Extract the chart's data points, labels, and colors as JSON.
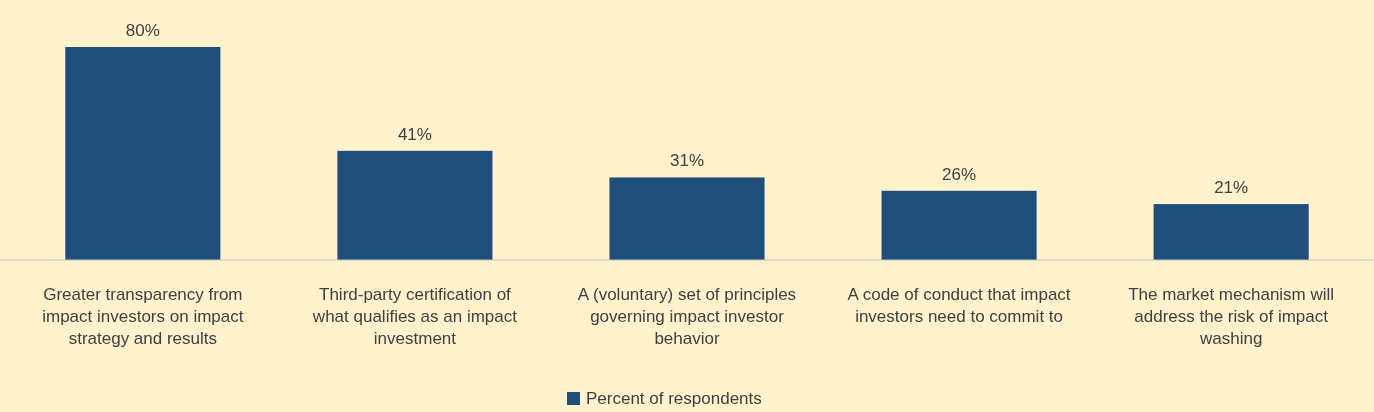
{
  "chart_data": {
    "type": "bar",
    "categories": [
      "Greater transparency from impact investors on impact strategy and results",
      "Third-party certification of what qualifies as an impact investment",
      "A (voluntary) set of principles governing impact investor behavior",
      "A code of conduct that impact investors need to commit to",
      "The market mechanism will address the risk of impact washing"
    ],
    "series": [
      {
        "name": "Percent of respondents",
        "color": "#1f4e79",
        "values": [
          80,
          41,
          31,
          26,
          21
        ],
        "value_labels": [
          "80%",
          "41%",
          "31%",
          "26%",
          "21%"
        ]
      }
    ],
    "legend": "bottom"
  }
}
